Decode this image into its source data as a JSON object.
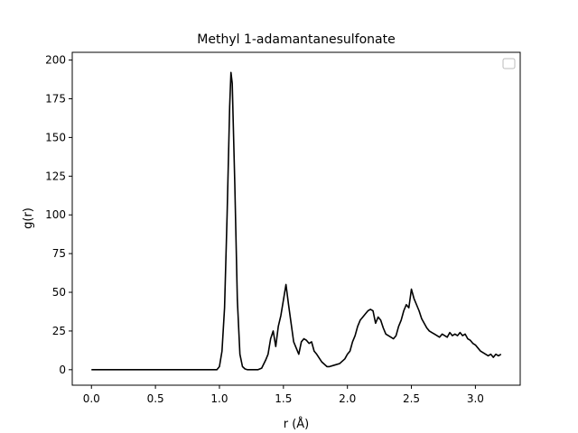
{
  "chart_data": {
    "type": "line",
    "title": "Methyl 1-adamantanesulfonate",
    "xlabel": "r (Å)",
    "ylabel": "g(r)",
    "xlim": [
      -0.15,
      3.35
    ],
    "ylim": [
      -10,
      205
    ],
    "xticks": [
      "0.0",
      "0.5",
      "1.0",
      "1.5",
      "2.0",
      "2.5",
      "3.0"
    ],
    "yticks": [
      "0",
      "25",
      "50",
      "75",
      "100",
      "125",
      "150",
      "175",
      "200"
    ],
    "grid": false,
    "legend": "top-right",
    "line_color": "#000000",
    "series": [
      {
        "x": [
          0.0,
          0.1,
          0.2,
          0.3,
          0.4,
          0.5,
          0.6,
          0.7,
          0.8,
          0.9,
          0.95,
          0.98,
          1.0,
          1.02,
          1.04,
          1.06,
          1.08,
          1.09,
          1.1,
          1.12,
          1.14,
          1.16,
          1.18,
          1.2,
          1.22,
          1.25,
          1.28,
          1.3,
          1.33,
          1.36,
          1.38,
          1.4,
          1.42,
          1.44,
          1.46,
          1.48,
          1.5,
          1.52,
          1.54,
          1.56,
          1.58,
          1.6,
          1.62,
          1.64,
          1.66,
          1.68,
          1.7,
          1.72,
          1.74,
          1.76,
          1.8,
          1.84,
          1.86,
          1.9,
          1.94,
          1.98,
          2.0,
          2.02,
          2.04,
          2.06,
          2.08,
          2.1,
          2.12,
          2.14,
          2.16,
          2.18,
          2.2,
          2.22,
          2.24,
          2.26,
          2.28,
          2.3,
          2.32,
          2.34,
          2.36,
          2.38,
          2.4,
          2.42,
          2.44,
          2.46,
          2.48,
          2.5,
          2.52,
          2.54,
          2.56,
          2.58,
          2.6,
          2.62,
          2.64,
          2.66,
          2.68,
          2.7,
          2.72,
          2.74,
          2.76,
          2.78,
          2.8,
          2.82,
          2.84,
          2.86,
          2.88,
          2.9,
          2.92,
          2.94,
          2.96,
          2.98,
          3.0,
          3.02,
          3.04,
          3.06,
          3.08,
          3.1,
          3.12,
          3.14,
          3.16,
          3.18,
          3.2
        ],
        "y": [
          0,
          0,
          0,
          0,
          0,
          0,
          0,
          0,
          0,
          0,
          0,
          0,
          2,
          12,
          40,
          100,
          170,
          192,
          185,
          120,
          45,
          10,
          2,
          0.5,
          0,
          0,
          0,
          0,
          1,
          6,
          10,
          20,
          25,
          15,
          28,
          35,
          45,
          55,
          42,
          30,
          18,
          14,
          10,
          18,
          20,
          19,
          17,
          18,
          12,
          10,
          5,
          2,
          2,
          3,
          4,
          7,
          10,
          12,
          18,
          22,
          28,
          32,
          34,
          36,
          38,
          39,
          38,
          30,
          34,
          32,
          27,
          23,
          22,
          21,
          20,
          22,
          28,
          32,
          38,
          42,
          40,
          52,
          46,
          42,
          38,
          33,
          30,
          27,
          25,
          24,
          23,
          22,
          21,
          23,
          22,
          21,
          24,
          22,
          23,
          22,
          24,
          22,
          23,
          20,
          19,
          17,
          16,
          14,
          12,
          11,
          10,
          9,
          10,
          8,
          10,
          9,
          10
        ]
      }
    ]
  }
}
